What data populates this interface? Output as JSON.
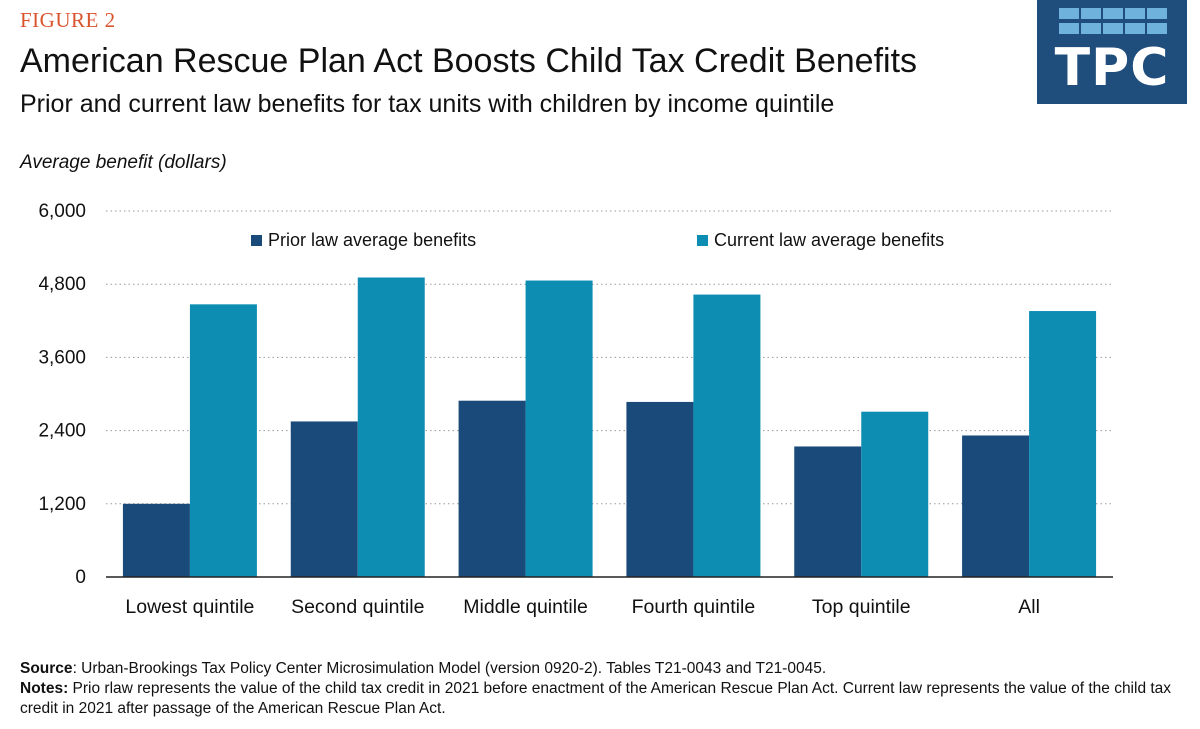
{
  "header": {
    "figure_label": "FIGURE 2",
    "title": "American Rescue Plan Act Boosts Child Tax Credit Benefits",
    "subtitle": "Prior and current law benefits for tax units with children by income quintile",
    "logo_text": "TPC"
  },
  "colors": {
    "prior": "#1a4a7a",
    "current": "#0e8db3",
    "accent": "#d9552e",
    "logo_bg": "#1f4e7d"
  },
  "chart_data": {
    "type": "bar",
    "ylabel": "Average benefit (dollars)",
    "xlabel": "",
    "ylim": [
      0,
      6000
    ],
    "yticks": [
      0,
      1200,
      2400,
      3600,
      4800,
      6000
    ],
    "ytick_labels": [
      "0",
      "1,200",
      "2,400",
      "3,600",
      "4,800",
      "6,000"
    ],
    "grid": "dotted horizontal",
    "legend_placement": "top",
    "categories": [
      "Lowest quintile",
      "Second quintile",
      "Middle quintile",
      "Fourth quintile",
      "Top quintile",
      "All"
    ],
    "series": [
      {
        "name": "Prior law average benefits",
        "values": [
          1200,
          2550,
          2890,
          2870,
          2140,
          2320
        ]
      },
      {
        "name": "Current law average benefits",
        "values": [
          4470,
          4910,
          4860,
          4630,
          2710,
          4360
        ]
      }
    ]
  },
  "footer": {
    "source_label": "Source",
    "source_text": ": Urban-Brookings Tax Policy Center Microsimulation Model (version 0920-2). Tables T21-0043 and T21-0045.",
    "notes_label": "Notes:",
    "notes_text": " Prio rlaw represents the value of the child tax credit in 2021 before enactment of the American Rescue Plan Act. Current law represents the value of the child tax credit in 2021 after passage of the American Rescue Plan Act."
  }
}
